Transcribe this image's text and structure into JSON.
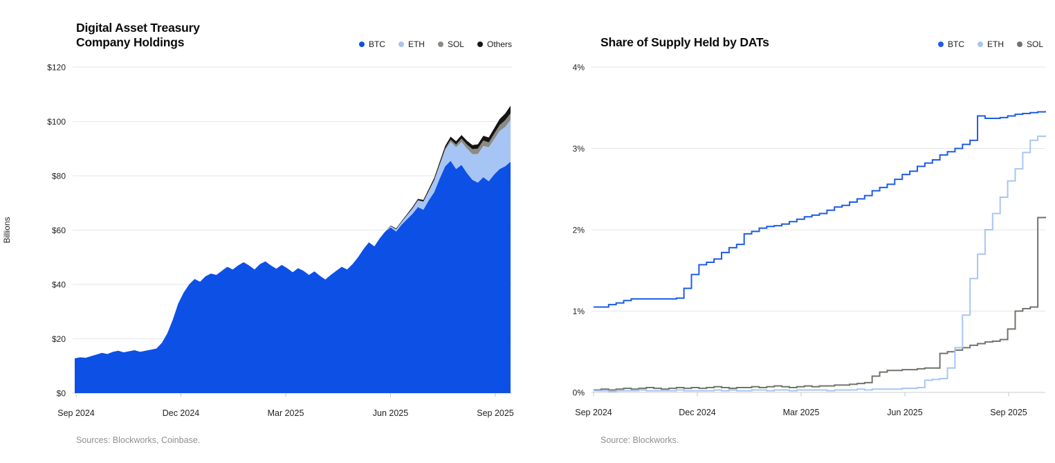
{
  "page": {
    "background": "#ffffff"
  },
  "charts": [
    {
      "id": "holdings",
      "title": "Digital Asset Treasury\nCompany Holdings",
      "source": "Sources: Blockworks, Coinbase.",
      "y_axis_label": "Billions",
      "chart_data": {
        "type": "area",
        "stacked": true,
        "title": "Digital Asset Treasury Company Holdings",
        "ylabel": "Billions",
        "ylim": [
          0,
          120
        ],
        "y_unit": "$ billions",
        "y_ticks": [
          "$0",
          "$20",
          "$40",
          "$60",
          "$80",
          "$100",
          "$120"
        ],
        "x_ticks": [
          "Sep 2024",
          "Dec 2024",
          "Mar 2025",
          "Jun 2025",
          "Sep 2025"
        ],
        "x_range": [
          "Sep 2024",
          "mid-Sep 2025"
        ],
        "grid": true,
        "legend_position": "top-right",
        "series": [
          {
            "name": "BTC",
            "color": "#0D50E6",
            "values": [
              12.8,
              13.2,
              13.0,
              13.6,
              14.2,
              14.8,
              14.4,
              15.2,
              15.6,
              15.0,
              15.4,
              15.8,
              15.2,
              15.6,
              16.0,
              16.4,
              18.5,
              22.0,
              27.0,
              33.0,
              37.0,
              40.0,
              42.0,
              41.0,
              43.0,
              44.0,
              43.5,
              45.0,
              46.5,
              45.5,
              47.0,
              48.2,
              47.0,
              45.5,
              47.5,
              48.5,
              47.0,
              45.8,
              47.2,
              46.0,
              44.5,
              46.0,
              45.0,
              43.5,
              44.8,
              43.2,
              41.8,
              43.5,
              45.0,
              46.5,
              45.5,
              47.5,
              50.0,
              53.0,
              55.5,
              54.0,
              57.0,
              59.5,
              61.0,
              59.5,
              62.0,
              64.0,
              66.0,
              68.5,
              67.5,
              71.0,
              74.0,
              79.0,
              83.5,
              85.5,
              82.5,
              84.0,
              81.0,
              78.5,
              77.5,
              79.5,
              78.0,
              80.5,
              82.5,
              83.5,
              85.2
            ]
          },
          {
            "name": "ETH",
            "color": "#A7C5F4",
            "values": [
              0,
              0,
              0,
              0,
              0,
              0,
              0,
              0,
              0,
              0,
              0,
              0,
              0,
              0,
              0,
              0,
              0,
              0,
              0,
              0,
              0,
              0,
              0,
              0,
              0,
              0,
              0,
              0,
              0,
              0,
              0,
              0,
              0,
              0,
              0,
              0,
              0,
              0,
              0,
              0,
              0,
              0,
              0,
              0,
              0,
              0,
              0,
              0,
              0,
              0,
              0,
              0,
              0,
              0,
              0,
              0,
              0,
              0,
              0.5,
              0.8,
              1.0,
              1.5,
              2.0,
              2.5,
              3.0,
              3.5,
              4.5,
              5.0,
              6.0,
              7.0,
              8.0,
              8.5,
              9.0,
              9.5,
              10.5,
              11.5,
              12.5,
              13.0,
              14.0,
              14.5,
              15.3
            ]
          },
          {
            "name": "SOL",
            "color": "#8B8B83",
            "values": [
              0,
              0,
              0,
              0,
              0,
              0,
              0,
              0,
              0,
              0,
              0,
              0,
              0,
              0,
              0,
              0,
              0,
              0,
              0,
              0,
              0,
              0,
              0,
              0,
              0,
              0,
              0,
              0,
              0,
              0,
              0,
              0,
              0,
              0,
              0,
              0,
              0,
              0,
              0,
              0,
              0,
              0,
              0,
              0,
              0,
              0,
              0,
              0,
              0,
              0,
              0,
              0,
              0,
              0,
              0,
              0,
              0,
              0,
              0,
              0,
              0,
              0,
              0,
              0,
              0,
              0,
              0,
              0.3,
              0.5,
              0.8,
              1.0,
              1.2,
              1.5,
              1.8,
              2.0,
              2.0,
              1.8,
              2.0,
              2.2,
              2.4,
              2.5
            ]
          },
          {
            "name": "Others",
            "color": "#141414",
            "values": [
              0,
              0,
              0,
              0,
              0,
              0,
              0,
              0,
              0,
              0,
              0,
              0,
              0,
              0,
              0,
              0,
              0,
              0,
              0,
              0,
              0,
              0,
              0,
              0,
              0,
              0,
              0,
              0,
              0,
              0,
              0,
              0,
              0,
              0,
              0,
              0,
              0,
              0,
              0,
              0,
              0,
              0,
              0,
              0,
              0,
              0,
              0,
              0,
              0,
              0,
              0,
              0,
              0,
              0,
              0,
              0,
              0,
              0,
              0.2,
              0.3,
              0.3,
              0.4,
              0.5,
              0.5,
              0.6,
              0.7,
              0.8,
              0.9,
              1.0,
              1.1,
              1.2,
              1.3,
              1.4,
              1.5,
              1.6,
              1.7,
              1.8,
              2.0,
              2.2,
              2.5,
              2.8
            ]
          }
        ]
      }
    },
    {
      "id": "share",
      "title": "Share of Supply Held by DATs",
      "source": "Source: Blockworks.",
      "y_axis_label": "",
      "chart_data": {
        "type": "line",
        "interpolation": "step-after",
        "title": "Share of Supply Held by DATs",
        "ylabel": "",
        "ylim": [
          0,
          4
        ],
        "y_unit": "%",
        "y_ticks": [
          "0%",
          "1%",
          "2%",
          "3%",
          "4%"
        ],
        "x_ticks": [
          "Sep 2024",
          "Dec 2024",
          "Mar 2025",
          "Jun 2025",
          "Sep 2025"
        ],
        "x_range": [
          "Sep 2024",
          "mid-Sep 2025"
        ],
        "grid": true,
        "legend_position": "top-right",
        "series": [
          {
            "name": "BTC",
            "color": "#1D5BE8",
            "values": [
              1.05,
              1.05,
              1.08,
              1.1,
              1.13,
              1.15,
              1.15,
              1.15,
              1.15,
              1.15,
              1.15,
              1.16,
              1.28,
              1.45,
              1.57,
              1.6,
              1.64,
              1.72,
              1.78,
              1.82,
              1.95,
              1.98,
              2.02,
              2.04,
              2.05,
              2.07,
              2.1,
              2.13,
              2.16,
              2.18,
              2.2,
              2.24,
              2.28,
              2.3,
              2.34,
              2.38,
              2.42,
              2.48,
              2.52,
              2.56,
              2.62,
              2.68,
              2.72,
              2.78,
              2.82,
              2.86,
              2.92,
              2.96,
              3.0,
              3.05,
              3.1,
              3.4,
              3.37,
              3.37,
              3.38,
              3.4,
              3.42,
              3.43,
              3.44,
              3.45,
              3.46
            ]
          },
          {
            "name": "ETH",
            "color": "#A7C5F4",
            "values": [
              0.02,
              0.02,
              0.01,
              0.02,
              0.02,
              0.02,
              0.03,
              0.02,
              0.02,
              0.02,
              0.02,
              0.03,
              0.02,
              0.02,
              0.02,
              0.02,
              0.03,
              0.02,
              0.03,
              0.02,
              0.02,
              0.03,
              0.03,
              0.02,
              0.03,
              0.03,
              0.02,
              0.03,
              0.03,
              0.03,
              0.03,
              0.02,
              0.03,
              0.03,
              0.03,
              0.04,
              0.03,
              0.04,
              0.04,
              0.04,
              0.04,
              0.05,
              0.05,
              0.06,
              0.15,
              0.16,
              0.17,
              0.3,
              0.55,
              0.95,
              1.4,
              1.7,
              2.0,
              2.2,
              2.4,
              2.6,
              2.75,
              2.95,
              3.1,
              3.15,
              3.16
            ]
          },
          {
            "name": "SOL",
            "color": "#72726C",
            "values": [
              0.03,
              0.04,
              0.03,
              0.04,
              0.05,
              0.04,
              0.05,
              0.06,
              0.05,
              0.04,
              0.05,
              0.06,
              0.05,
              0.06,
              0.05,
              0.06,
              0.07,
              0.06,
              0.05,
              0.06,
              0.06,
              0.07,
              0.06,
              0.07,
              0.08,
              0.07,
              0.06,
              0.07,
              0.08,
              0.07,
              0.08,
              0.08,
              0.09,
              0.09,
              0.1,
              0.11,
              0.12,
              0.2,
              0.25,
              0.27,
              0.27,
              0.28,
              0.28,
              0.29,
              0.3,
              0.3,
              0.48,
              0.5,
              0.52,
              0.55,
              0.58,
              0.6,
              0.62,
              0.63,
              0.65,
              0.78,
              1.0,
              1.03,
              1.05,
              2.15,
              2.16
            ]
          }
        ]
      }
    }
  ]
}
